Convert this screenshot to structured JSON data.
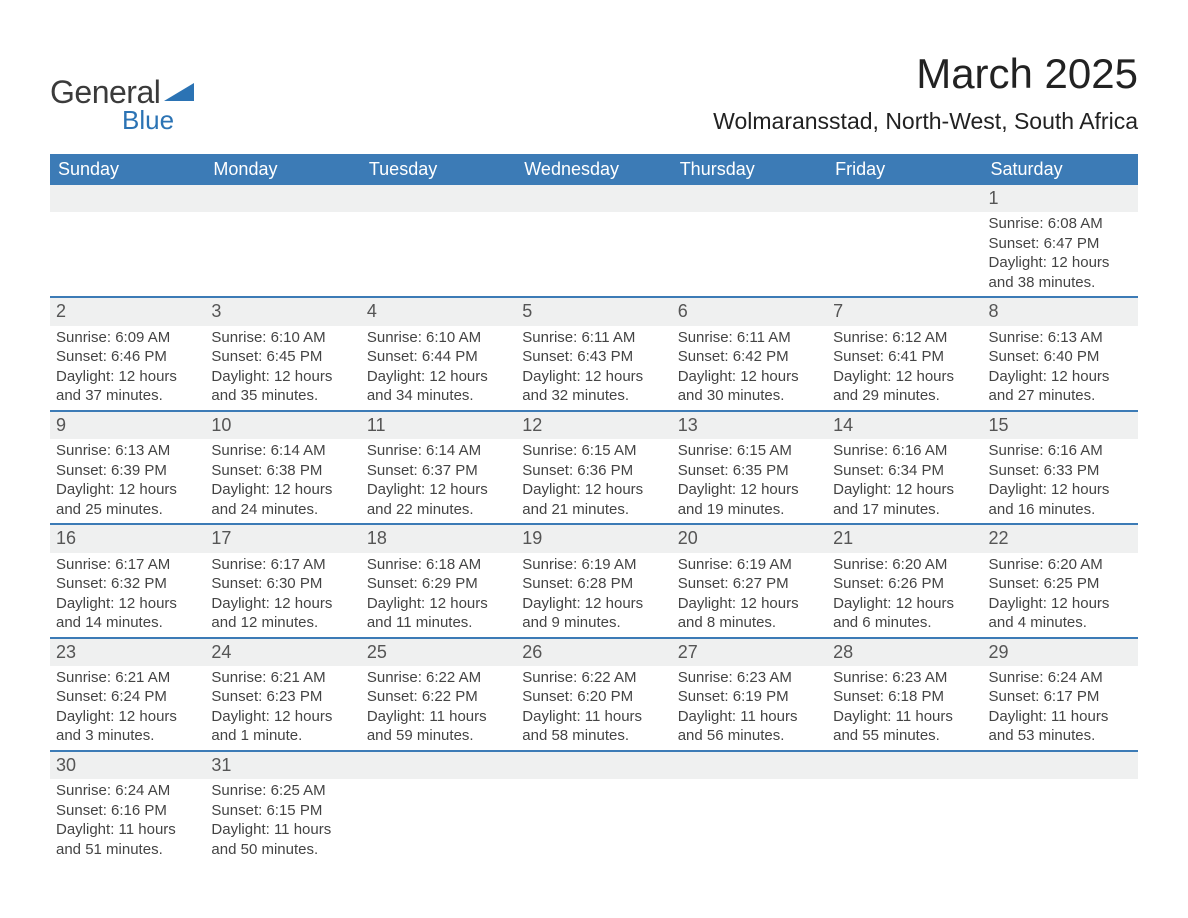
{
  "logo": {
    "text1": "General",
    "text2": "Blue",
    "triangle_color": "#2b73b4",
    "text1_color": "#3b3b3b",
    "text2_color": "#2b73b4"
  },
  "title": "March 2025",
  "location": "Wolmaransstad, North-West, South Africa",
  "styling": {
    "header_bg": "#3c7bb6",
    "header_text": "#ffffff",
    "daynum_bg": "#eff0f0",
    "row_border": "#3c7bb6",
    "body_text": "#444444",
    "page_bg": "#ffffff",
    "title_fontsize": 42,
    "location_fontsize": 23,
    "header_fontsize": 18,
    "daynum_fontsize": 18,
    "detail_fontsize": 15
  },
  "weekdays": [
    "Sunday",
    "Monday",
    "Tuesday",
    "Wednesday",
    "Thursday",
    "Friday",
    "Saturday"
  ],
  "weeks": [
    [
      null,
      null,
      null,
      null,
      null,
      null,
      {
        "n": "1",
        "sr": "Sunrise: 6:08 AM",
        "ss": "Sunset: 6:47 PM",
        "d1": "Daylight: 12 hours",
        "d2": "and 38 minutes."
      }
    ],
    [
      {
        "n": "2",
        "sr": "Sunrise: 6:09 AM",
        "ss": "Sunset: 6:46 PM",
        "d1": "Daylight: 12 hours",
        "d2": "and 37 minutes."
      },
      {
        "n": "3",
        "sr": "Sunrise: 6:10 AM",
        "ss": "Sunset: 6:45 PM",
        "d1": "Daylight: 12 hours",
        "d2": "and 35 minutes."
      },
      {
        "n": "4",
        "sr": "Sunrise: 6:10 AM",
        "ss": "Sunset: 6:44 PM",
        "d1": "Daylight: 12 hours",
        "d2": "and 34 minutes."
      },
      {
        "n": "5",
        "sr": "Sunrise: 6:11 AM",
        "ss": "Sunset: 6:43 PM",
        "d1": "Daylight: 12 hours",
        "d2": "and 32 minutes."
      },
      {
        "n": "6",
        "sr": "Sunrise: 6:11 AM",
        "ss": "Sunset: 6:42 PM",
        "d1": "Daylight: 12 hours",
        "d2": "and 30 minutes."
      },
      {
        "n": "7",
        "sr": "Sunrise: 6:12 AM",
        "ss": "Sunset: 6:41 PM",
        "d1": "Daylight: 12 hours",
        "d2": "and 29 minutes."
      },
      {
        "n": "8",
        "sr": "Sunrise: 6:13 AM",
        "ss": "Sunset: 6:40 PM",
        "d1": "Daylight: 12 hours",
        "d2": "and 27 minutes."
      }
    ],
    [
      {
        "n": "9",
        "sr": "Sunrise: 6:13 AM",
        "ss": "Sunset: 6:39 PM",
        "d1": "Daylight: 12 hours",
        "d2": "and 25 minutes."
      },
      {
        "n": "10",
        "sr": "Sunrise: 6:14 AM",
        "ss": "Sunset: 6:38 PM",
        "d1": "Daylight: 12 hours",
        "d2": "and 24 minutes."
      },
      {
        "n": "11",
        "sr": "Sunrise: 6:14 AM",
        "ss": "Sunset: 6:37 PM",
        "d1": "Daylight: 12 hours",
        "d2": "and 22 minutes."
      },
      {
        "n": "12",
        "sr": "Sunrise: 6:15 AM",
        "ss": "Sunset: 6:36 PM",
        "d1": "Daylight: 12 hours",
        "d2": "and 21 minutes."
      },
      {
        "n": "13",
        "sr": "Sunrise: 6:15 AM",
        "ss": "Sunset: 6:35 PM",
        "d1": "Daylight: 12 hours",
        "d2": "and 19 minutes."
      },
      {
        "n": "14",
        "sr": "Sunrise: 6:16 AM",
        "ss": "Sunset: 6:34 PM",
        "d1": "Daylight: 12 hours",
        "d2": "and 17 minutes."
      },
      {
        "n": "15",
        "sr": "Sunrise: 6:16 AM",
        "ss": "Sunset: 6:33 PM",
        "d1": "Daylight: 12 hours",
        "d2": "and 16 minutes."
      }
    ],
    [
      {
        "n": "16",
        "sr": "Sunrise: 6:17 AM",
        "ss": "Sunset: 6:32 PM",
        "d1": "Daylight: 12 hours",
        "d2": "and 14 minutes."
      },
      {
        "n": "17",
        "sr": "Sunrise: 6:17 AM",
        "ss": "Sunset: 6:30 PM",
        "d1": "Daylight: 12 hours",
        "d2": "and 12 minutes."
      },
      {
        "n": "18",
        "sr": "Sunrise: 6:18 AM",
        "ss": "Sunset: 6:29 PM",
        "d1": "Daylight: 12 hours",
        "d2": "and 11 minutes."
      },
      {
        "n": "19",
        "sr": "Sunrise: 6:19 AM",
        "ss": "Sunset: 6:28 PM",
        "d1": "Daylight: 12 hours",
        "d2": "and 9 minutes."
      },
      {
        "n": "20",
        "sr": "Sunrise: 6:19 AM",
        "ss": "Sunset: 6:27 PM",
        "d1": "Daylight: 12 hours",
        "d2": "and 8 minutes."
      },
      {
        "n": "21",
        "sr": "Sunrise: 6:20 AM",
        "ss": "Sunset: 6:26 PM",
        "d1": "Daylight: 12 hours",
        "d2": "and 6 minutes."
      },
      {
        "n": "22",
        "sr": "Sunrise: 6:20 AM",
        "ss": "Sunset: 6:25 PM",
        "d1": "Daylight: 12 hours",
        "d2": "and 4 minutes."
      }
    ],
    [
      {
        "n": "23",
        "sr": "Sunrise: 6:21 AM",
        "ss": "Sunset: 6:24 PM",
        "d1": "Daylight: 12 hours",
        "d2": "and 3 minutes."
      },
      {
        "n": "24",
        "sr": "Sunrise: 6:21 AM",
        "ss": "Sunset: 6:23 PM",
        "d1": "Daylight: 12 hours",
        "d2": "and 1 minute."
      },
      {
        "n": "25",
        "sr": "Sunrise: 6:22 AM",
        "ss": "Sunset: 6:22 PM",
        "d1": "Daylight: 11 hours",
        "d2": "and 59 minutes."
      },
      {
        "n": "26",
        "sr": "Sunrise: 6:22 AM",
        "ss": "Sunset: 6:20 PM",
        "d1": "Daylight: 11 hours",
        "d2": "and 58 minutes."
      },
      {
        "n": "27",
        "sr": "Sunrise: 6:23 AM",
        "ss": "Sunset: 6:19 PM",
        "d1": "Daylight: 11 hours",
        "d2": "and 56 minutes."
      },
      {
        "n": "28",
        "sr": "Sunrise: 6:23 AM",
        "ss": "Sunset: 6:18 PM",
        "d1": "Daylight: 11 hours",
        "d2": "and 55 minutes."
      },
      {
        "n": "29",
        "sr": "Sunrise: 6:24 AM",
        "ss": "Sunset: 6:17 PM",
        "d1": "Daylight: 11 hours",
        "d2": "and 53 minutes."
      }
    ],
    [
      {
        "n": "30",
        "sr": "Sunrise: 6:24 AM",
        "ss": "Sunset: 6:16 PM",
        "d1": "Daylight: 11 hours",
        "d2": "and 51 minutes."
      },
      {
        "n": "31",
        "sr": "Sunrise: 6:25 AM",
        "ss": "Sunset: 6:15 PM",
        "d1": "Daylight: 11 hours",
        "d2": "and 50 minutes."
      },
      null,
      null,
      null,
      null,
      null
    ]
  ]
}
